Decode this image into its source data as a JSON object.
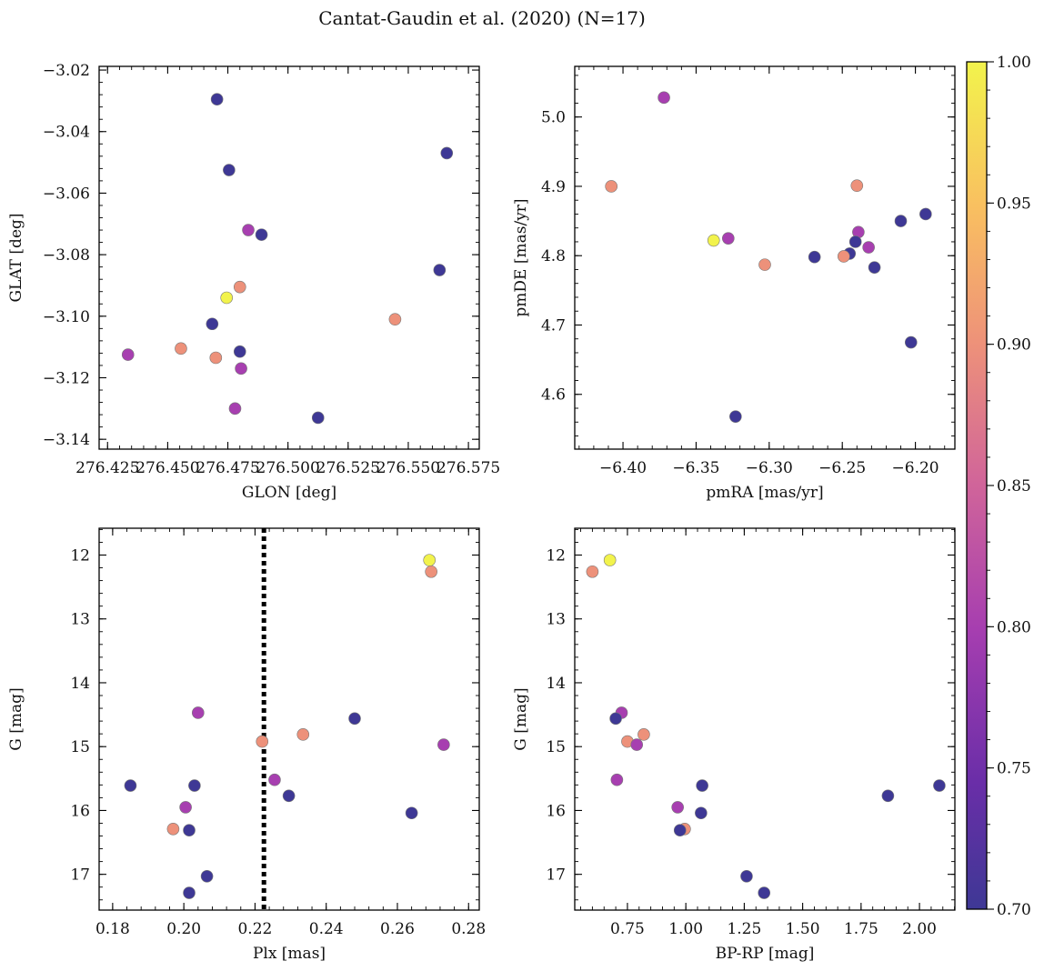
{
  "figure": {
    "title": "Cantat-Gaudin et al. (2020) (N=17)"
  },
  "colorbar": {
    "cmap": "plasma",
    "range": [
      0.7,
      1.0
    ],
    "ticks": [
      0.7,
      0.75,
      0.8,
      0.85,
      0.9,
      0.95,
      1.0
    ],
    "tick_labels": [
      "0.70",
      "0.75",
      "0.80",
      "0.85",
      "0.90",
      "0.95",
      "1.00"
    ],
    "colors": {
      "c070": "#3e3895",
      "c080": "#a63eb0",
      "c090": "#ee9279",
      "c100": "#f2f34c"
    }
  },
  "chart_data": [
    {
      "type": "scatter",
      "name": "glon-glat",
      "xlabel": "GLON [deg]",
      "ylabel": "GLAT [deg]",
      "xlim": [
        276.4215,
        276.5795
      ],
      "ylim": [
        -3.1432,
        -3.0188
      ],
      "invert_y": false,
      "xticks": [
        276.425,
        276.45,
        276.475,
        276.5,
        276.525,
        276.55,
        276.575
      ],
      "xtick_labels": [
        "276.425",
        "276.450",
        "276.475",
        "276.500",
        "276.525",
        "276.550",
        "276.575"
      ],
      "yticks": [
        -3.14,
        -3.12,
        -3.1,
        -3.08,
        -3.06,
        -3.04,
        -3.02
      ],
      "ytick_labels": [
        "−3.14",
        "−3.12",
        "−3.10",
        "−3.08",
        "−3.06",
        "−3.04",
        "−3.02"
      ],
      "points": [
        {
          "x": 276.4705,
          "y": -3.0295,
          "c": 0.7
        },
        {
          "x": 276.4755,
          "y": -3.0525,
          "c": 0.7
        },
        {
          "x": 276.566,
          "y": -3.047,
          "c": 0.7
        },
        {
          "x": 276.4835,
          "y": -3.072,
          "c": 0.8
        },
        {
          "x": 276.489,
          "y": -3.0735,
          "c": 0.7
        },
        {
          "x": 276.563,
          "y": -3.085,
          "c": 0.7
        },
        {
          "x": 276.48,
          "y": -3.0905,
          "c": 0.9
        },
        {
          "x": 276.4745,
          "y": -3.094,
          "c": 1.0
        },
        {
          "x": 276.5445,
          "y": -3.101,
          "c": 0.9
        },
        {
          "x": 276.4685,
          "y": -3.1025,
          "c": 0.7
        },
        {
          "x": 276.4555,
          "y": -3.1105,
          "c": 0.9
        },
        {
          "x": 276.48,
          "y": -3.1115,
          "c": 0.7
        },
        {
          "x": 276.4335,
          "y": -3.1125,
          "c": 0.8
        },
        {
          "x": 276.47,
          "y": -3.1135,
          "c": 0.9
        },
        {
          "x": 276.4805,
          "y": -3.117,
          "c": 0.8
        },
        {
          "x": 276.478,
          "y": -3.13,
          "c": 0.8
        },
        {
          "x": 276.5125,
          "y": -3.133,
          "c": 0.7
        }
      ]
    },
    {
      "type": "scatter",
      "name": "pmra-pmde",
      "xlabel": "pmRA [mas/yr]",
      "ylabel": "pmDE [mas/yr]",
      "xlim": [
        -6.433,
        -6.173
      ],
      "ylim": [
        4.521,
        5.073
      ],
      "invert_y": false,
      "xticks": [
        -6.4,
        -6.35,
        -6.3,
        -6.25,
        -6.2
      ],
      "xtick_labels": [
        "−6.40",
        "−6.35",
        "−6.30",
        "−6.25",
        "−6.20"
      ],
      "yticks": [
        4.6,
        4.7,
        4.8,
        4.9,
        5.0
      ],
      "ytick_labels": [
        "4.6",
        "4.7",
        "4.8",
        "4.9",
        "5.0"
      ],
      "points": [
        {
          "x": -6.372,
          "y": 5.028,
          "c": 0.8
        },
        {
          "x": -6.408,
          "y": 4.9,
          "c": 0.9
        },
        {
          "x": -6.24,
          "y": 4.901,
          "c": 0.9
        },
        {
          "x": -6.193,
          "y": 4.86,
          "c": 0.7
        },
        {
          "x": -6.21,
          "y": 4.85,
          "c": 0.7
        },
        {
          "x": -6.239,
          "y": 4.834,
          "c": 0.8
        },
        {
          "x": -6.328,
          "y": 4.825,
          "c": 0.8
        },
        {
          "x": -6.338,
          "y": 4.822,
          "c": 1.0
        },
        {
          "x": -6.241,
          "y": 4.82,
          "c": 0.7
        },
        {
          "x": -6.232,
          "y": 4.812,
          "c": 0.8
        },
        {
          "x": -6.245,
          "y": 4.803,
          "c": 0.7
        },
        {
          "x": -6.249,
          "y": 4.799,
          "c": 0.9
        },
        {
          "x": -6.269,
          "y": 4.798,
          "c": 0.7
        },
        {
          "x": -6.303,
          "y": 4.787,
          "c": 0.9
        },
        {
          "x": -6.228,
          "y": 4.783,
          "c": 0.7
        },
        {
          "x": -6.203,
          "y": 4.675,
          "c": 0.7
        },
        {
          "x": -6.323,
          "y": 4.568,
          "c": 0.7
        }
      ]
    },
    {
      "type": "scatter",
      "name": "plx-g",
      "xlabel": "Plx [mas]",
      "ylabel": "G [mag]",
      "xlim": [
        0.1762,
        0.283
      ],
      "ylim": [
        11.58,
        17.56
      ],
      "invert_y": true,
      "vline": 0.2225,
      "xticks": [
        0.18,
        0.2,
        0.22,
        0.24,
        0.26,
        0.28
      ],
      "xtick_labels": [
        "0.18",
        "0.20",
        "0.22",
        "0.24",
        "0.26",
        "0.28"
      ],
      "yticks": [
        12,
        13,
        14,
        15,
        16,
        17
      ],
      "ytick_labels": [
        "12",
        "13",
        "14",
        "15",
        "16",
        "17"
      ],
      "points": [
        {
          "x": 0.269,
          "y": 12.08,
          "c": 1.0
        },
        {
          "x": 0.2695,
          "y": 12.26,
          "c": 0.9
        },
        {
          "x": 0.204,
          "y": 14.47,
          "c": 0.8
        },
        {
          "x": 0.248,
          "y": 14.56,
          "c": 0.7
        },
        {
          "x": 0.2335,
          "y": 14.81,
          "c": 0.9
        },
        {
          "x": 0.222,
          "y": 14.92,
          "c": 0.9
        },
        {
          "x": 0.273,
          "y": 14.97,
          "c": 0.8
        },
        {
          "x": 0.2255,
          "y": 15.52,
          "c": 0.8
        },
        {
          "x": 0.185,
          "y": 15.61,
          "c": 0.7
        },
        {
          "x": 0.203,
          "y": 15.61,
          "c": 0.7
        },
        {
          "x": 0.2295,
          "y": 15.77,
          "c": 0.7
        },
        {
          "x": 0.2005,
          "y": 15.95,
          "c": 0.8
        },
        {
          "x": 0.264,
          "y": 16.04,
          "c": 0.7
        },
        {
          "x": 0.197,
          "y": 16.29,
          "c": 0.9
        },
        {
          "x": 0.2015,
          "y": 16.31,
          "c": 0.7
        },
        {
          "x": 0.2065,
          "y": 17.03,
          "c": 0.7
        },
        {
          "x": 0.2015,
          "y": 17.29,
          "c": 0.7
        }
      ]
    },
    {
      "type": "scatter",
      "name": "bprp-g",
      "xlabel": "BP-RP [mag]",
      "ylabel": "G [mag]",
      "xlim": [
        0.5245,
        2.1515
      ],
      "ylim": [
        11.58,
        17.56
      ],
      "invert_y": true,
      "xticks": [
        0.75,
        1.0,
        1.25,
        1.5,
        1.75,
        2.0
      ],
      "xtick_labels": [
        "0.75",
        "1.00",
        "1.25",
        "1.50",
        "1.75",
        "2.00"
      ],
      "yticks": [
        12,
        13,
        14,
        15,
        16,
        17
      ],
      "ytick_labels": [
        "12",
        "13",
        "14",
        "15",
        "16",
        "17"
      ],
      "points": [
        {
          "x": 0.675,
          "y": 12.08,
          "c": 1.0
        },
        {
          "x": 0.6,
          "y": 12.26,
          "c": 0.9
        },
        {
          "x": 0.725,
          "y": 14.47,
          "c": 0.8
        },
        {
          "x": 0.7,
          "y": 14.56,
          "c": 0.7
        },
        {
          "x": 0.82,
          "y": 14.81,
          "c": 0.9
        },
        {
          "x": 0.75,
          "y": 14.92,
          "c": 0.9
        },
        {
          "x": 0.79,
          "y": 14.97,
          "c": 0.8
        },
        {
          "x": 0.705,
          "y": 15.52,
          "c": 0.8
        },
        {
          "x": 2.085,
          "y": 15.61,
          "c": 0.7
        },
        {
          "x": 1.07,
          "y": 15.61,
          "c": 0.7
        },
        {
          "x": 1.865,
          "y": 15.77,
          "c": 0.7
        },
        {
          "x": 0.965,
          "y": 15.95,
          "c": 0.8
        },
        {
          "x": 1.065,
          "y": 16.04,
          "c": 0.7
        },
        {
          "x": 0.995,
          "y": 16.29,
          "c": 0.9
        },
        {
          "x": 0.975,
          "y": 16.31,
          "c": 0.7
        },
        {
          "x": 1.26,
          "y": 17.03,
          "c": 0.7
        },
        {
          "x": 1.335,
          "y": 17.29,
          "c": 0.7
        }
      ]
    }
  ]
}
